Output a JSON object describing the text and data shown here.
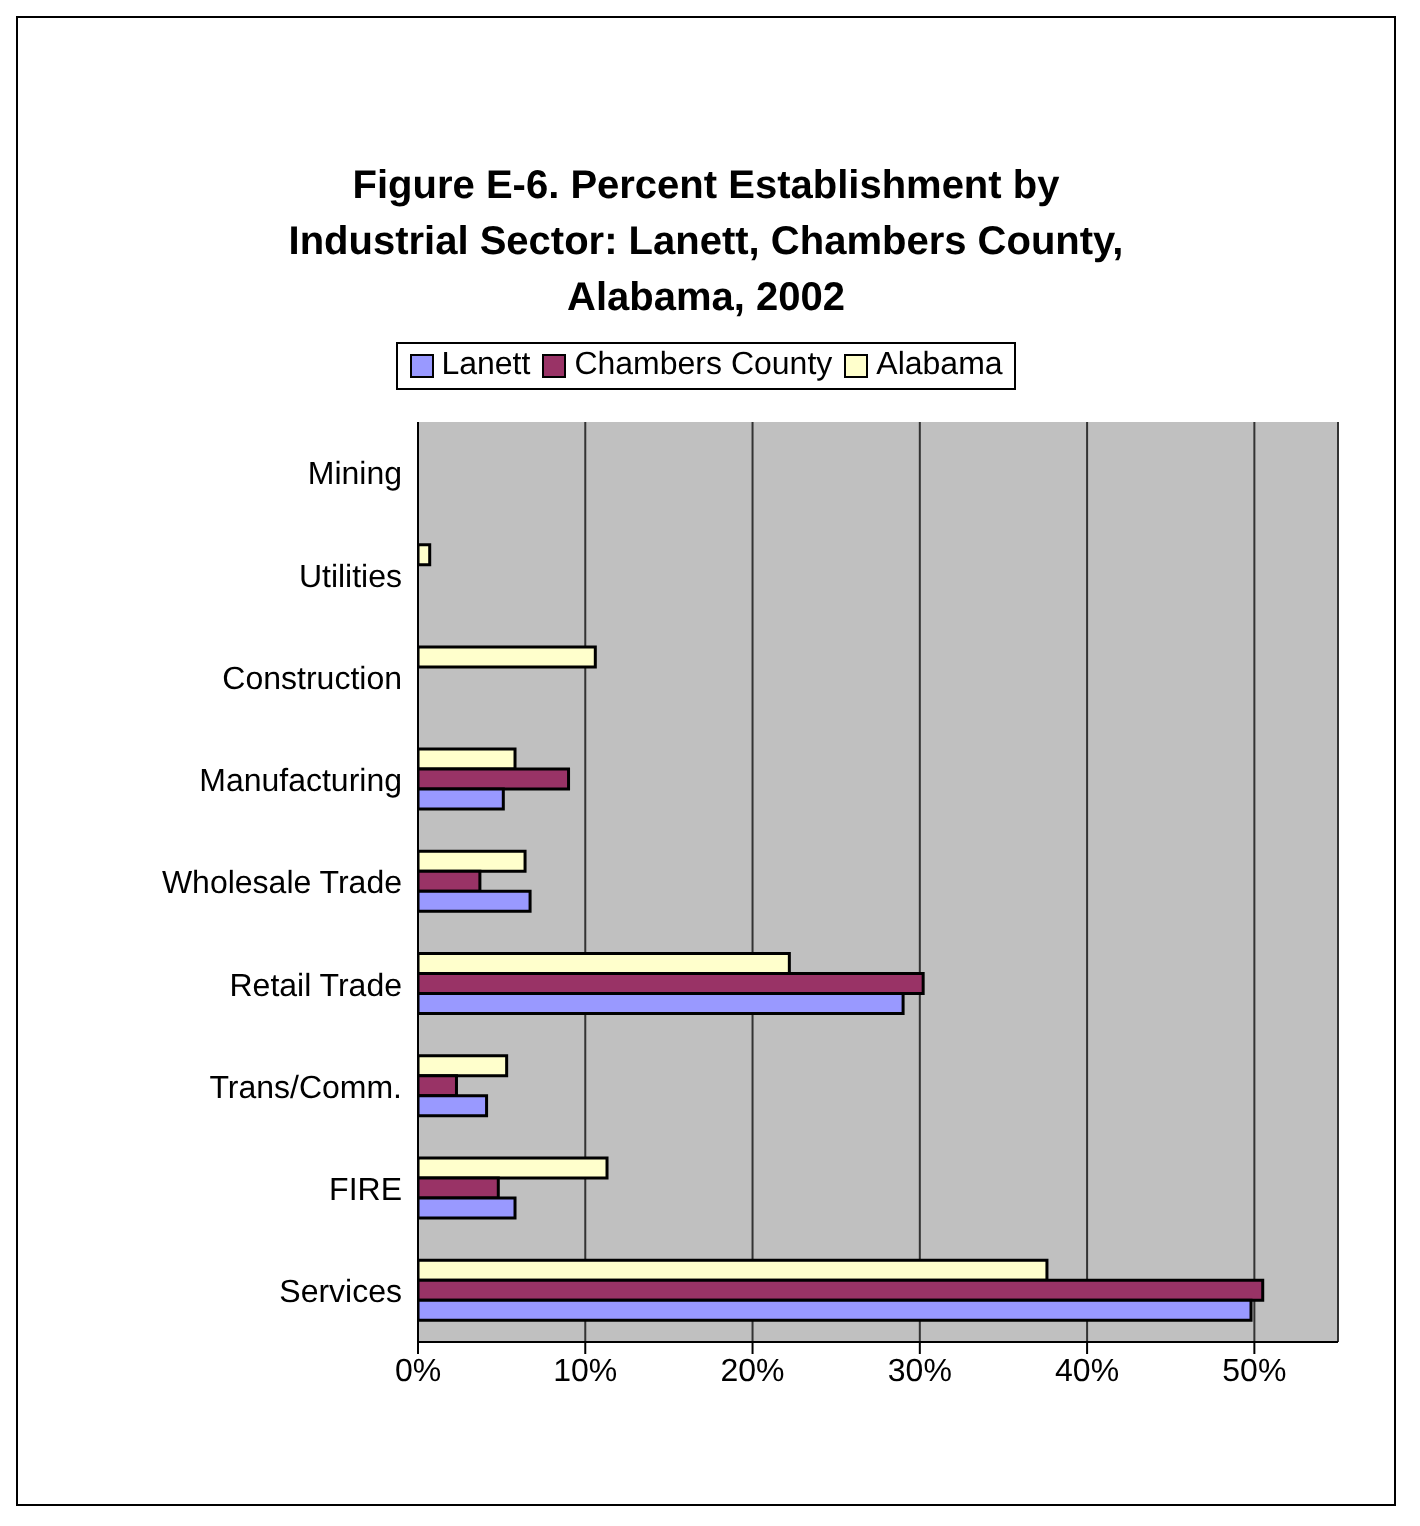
{
  "chart_data": {
    "type": "bar",
    "orientation": "horizontal",
    "title": "Figure E-6. Percent Establishment by Industrial Sector: Lanett, Chambers County, Alabama, 2002",
    "categories": [
      "Mining",
      "Utilities",
      "Construction",
      "Manufacturing",
      "Wholesale Trade",
      "Retail Trade",
      "Trans/Comm.",
      "FIRE",
      "Services"
    ],
    "series": [
      {
        "name": "Lanett",
        "color": "#9999ff",
        "values": [
          null,
          null,
          null,
          5.1,
          6.7,
          29.0,
          4.1,
          5.8,
          49.8
        ]
      },
      {
        "name": "Chambers County",
        "color": "#993366",
        "values": [
          null,
          null,
          null,
          9.0,
          3.7,
          30.2,
          2.3,
          4.8,
          50.5
        ]
      },
      {
        "name": "Alabama",
        "color": "#ffffcc",
        "values": [
          null,
          0.7,
          10.6,
          5.8,
          6.4,
          22.2,
          5.3,
          11.3,
          37.6
        ]
      }
    ],
    "xlim": [
      0,
      55
    ],
    "xticks": [
      {
        "value": 0,
        "label": "0%"
      },
      {
        "value": 10,
        "label": "10%"
      },
      {
        "value": 20,
        "label": "20%"
      },
      {
        "value": 30,
        "label": "30%"
      },
      {
        "value": 40,
        "label": "40%"
      },
      {
        "value": 50,
        "label": "50%"
      }
    ],
    "grid": "x",
    "legend": "top"
  }
}
